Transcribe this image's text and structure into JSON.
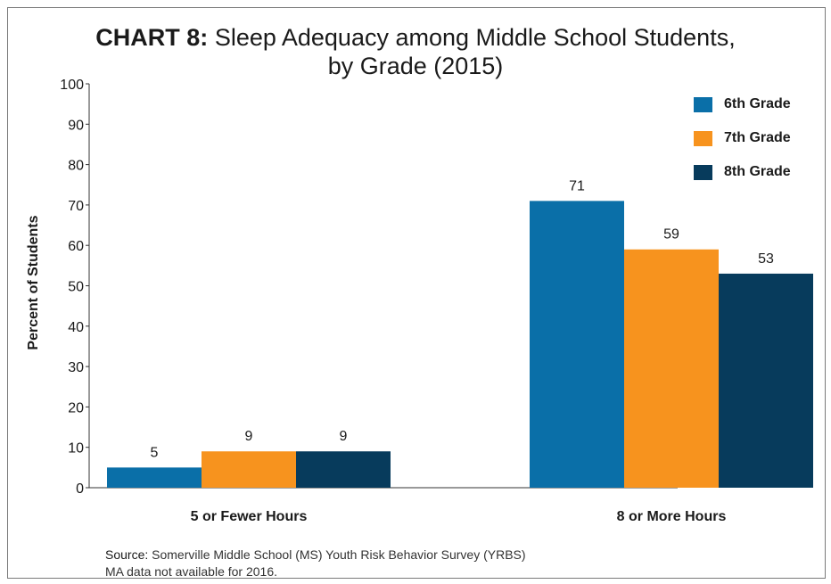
{
  "title": {
    "prefix": "CHART 8:",
    "line1": "Sleep Adequacy among Middle School Students,",
    "line2": "by Grade (2015)"
  },
  "footer": {
    "source_label": "Source:",
    "source_text": "Somerville Middle School (MS) Youth Risk Behavior Survey (YRBS)",
    "note": "MA data not available for 2016."
  },
  "colors": {
    "6th Grade": "#0a6fa8",
    "7th Grade": "#f7931e",
    "8th Grade": "#073b5c",
    "axis": "#333333"
  },
  "chart_data": {
    "type": "bar",
    "ylabel": "Percent of Students",
    "xlabel": "",
    "ylim": [
      0,
      100
    ],
    "yticks": [
      0,
      10,
      20,
      30,
      40,
      50,
      60,
      70,
      80,
      90,
      100
    ],
    "grid": false,
    "legend_position": "top-right",
    "categories": [
      "5 or Fewer Hours",
      "8 or More Hours"
    ],
    "series": [
      {
        "name": "6th Grade",
        "values": [
          5,
          71
        ]
      },
      {
        "name": "7th Grade",
        "values": [
          9,
          59
        ]
      },
      {
        "name": "8th Grade",
        "values": [
          9,
          53
        ]
      }
    ]
  }
}
